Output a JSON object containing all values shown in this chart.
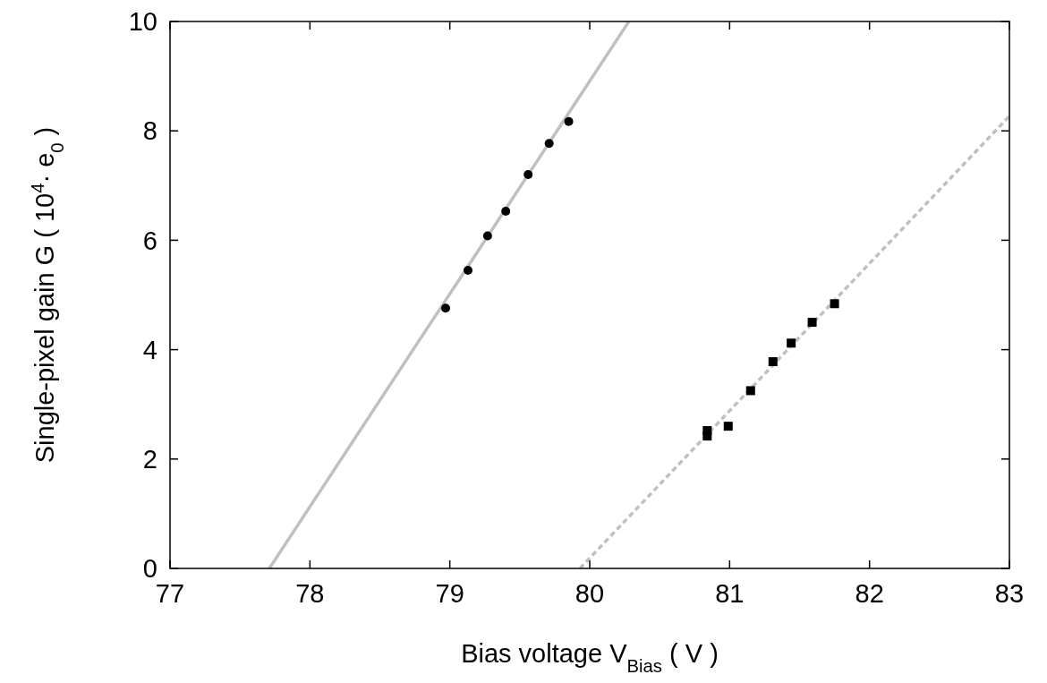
{
  "chart_data": {
    "type": "scatter",
    "xlabel": "Bias voltage V$_{Bias}$ ( V )",
    "ylabel": "Single-pixel gain G ( 10$^{4}$· e$_{0}$ )",
    "xlim": [
      77,
      83
    ],
    "xticks": [
      77,
      78,
      79,
      80,
      81,
      82,
      83
    ],
    "ylim": [
      0,
      10
    ],
    "yticks": [
      0,
      2,
      4,
      6,
      8,
      10
    ],
    "grid": false,
    "series": [
      {
        "type": "line",
        "color": "#c0c0c0",
        "line_style": "solid",
        "x": [
          77.71,
          80.28
        ],
        "values": [
          0,
          10
        ]
      },
      {
        "type": "line",
        "color": "#c0c0c0",
        "line_style": "dashed",
        "x": [
          79.93,
          83
        ],
        "values": [
          0,
          8.27
        ]
      },
      {
        "color": "#000000",
        "marker": "circle",
        "x": [
          78.97,
          79.13,
          79.27,
          79.4,
          79.56,
          79.71,
          79.85
        ],
        "values": [
          4.76,
          5.45,
          6.08,
          6.53,
          7.2,
          7.77,
          8.17
        ]
      },
      {
        "color": "#000000",
        "marker": "square",
        "x": [
          80.84,
          80.84,
          80.99,
          81.15,
          81.31,
          81.44,
          81.59,
          81.75
        ],
        "values": [
          2.42,
          2.52,
          2.6,
          3.25,
          3.78,
          4.12,
          4.5,
          4.84
        ]
      }
    ]
  }
}
